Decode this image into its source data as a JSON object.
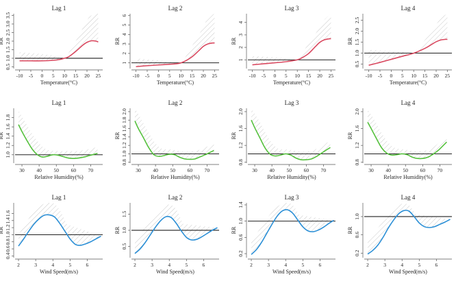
{
  "chart_data": [
    {
      "type": "line",
      "row": "temperature",
      "title": "Lag 1",
      "xlabel": "Temperature(°C)",
      "ylabel": "RR",
      "xlim": [
        -12,
        27
      ],
      "ylim": [
        0.4,
        3.6
      ],
      "xticks": [
        -10,
        -5,
        0,
        5,
        10,
        15,
        20,
        25
      ],
      "yticks": [
        0.5,
        1,
        1.5,
        2,
        2.5,
        3,
        3.5
      ],
      "ytick_labels": [
        "0.5",
        "1.0",
        "1.5",
        "2.0",
        "2.5",
        "3.0",
        "3.5"
      ],
      "reference_line": 1,
      "color": "#d9485f",
      "series": [
        {
          "name": "RR",
          "x": [
            -10,
            -5,
            0,
            5,
            8,
            10,
            12,
            15,
            18,
            20,
            22,
            24,
            25
          ],
          "y": [
            0.85,
            0.85,
            0.85,
            0.88,
            0.93,
            1.0,
            1.1,
            1.4,
            1.75,
            1.93,
            2.02,
            2.0,
            1.95
          ]
        }
      ],
      "ci_upper": {
        "x": [
          -10,
          -5,
          0,
          5,
          10,
          15,
          20,
          22,
          25
        ],
        "y": [
          1.35,
          1.3,
          1.25,
          1.15,
          1.05,
          2.0,
          3.2,
          3.5,
          3.6
        ]
      }
    },
    {
      "type": "line",
      "row": "temperature",
      "title": "Lag 2",
      "xlabel": "Temperature(°C)",
      "ylabel": "RR",
      "xlim": [
        -12,
        27
      ],
      "ylim": [
        0.4,
        6.2
      ],
      "xticks": [
        -10,
        -5,
        0,
        5,
        10,
        15,
        20,
        25
      ],
      "yticks": [
        1,
        2,
        3,
        4,
        5,
        6
      ],
      "ytick_labels": [
        "1",
        "2",
        "3",
        "4",
        "5",
        "6"
      ],
      "reference_line": 1,
      "color": "#d9485f",
      "series": [
        {
          "name": "RR",
          "x": [
            -10,
            -5,
            0,
            5,
            8,
            10,
            12,
            15,
            18,
            20,
            22,
            24,
            25
          ],
          "y": [
            0.6,
            0.7,
            0.78,
            0.85,
            0.9,
            1.0,
            1.2,
            1.65,
            2.3,
            2.75,
            3.0,
            3.1,
            3.1
          ]
        }
      ],
      "ci_upper": {
        "x": [
          -10,
          -5,
          0,
          5,
          10,
          15,
          20,
          22,
          25
        ],
        "y": [
          1.5,
          1.35,
          1.25,
          1.15,
          1.05,
          2.8,
          4.8,
          5.8,
          6.2
        ]
      }
    },
    {
      "type": "line",
      "row": "temperature",
      "title": "Lag 3",
      "xlabel": "Temperature(°C)",
      "ylabel": "RR",
      "xlim": [
        -12,
        27
      ],
      "ylim": [
        0.3,
        4.7
      ],
      "xticks": [
        -10,
        -5,
        0,
        5,
        10,
        15,
        20,
        25
      ],
      "yticks": [
        1,
        2,
        3,
        4
      ],
      "ytick_labels": [
        "1",
        "2",
        "3",
        "4"
      ],
      "reference_line": 1,
      "color": "#d9485f",
      "series": [
        {
          "name": "RR",
          "x": [
            -10,
            -5,
            0,
            5,
            8,
            10,
            12,
            15,
            18,
            20,
            22,
            24,
            25
          ],
          "y": [
            0.6,
            0.68,
            0.76,
            0.85,
            0.93,
            1.0,
            1.15,
            1.5,
            2.05,
            2.4,
            2.6,
            2.68,
            2.7
          ]
        }
      ],
      "ci_upper": {
        "x": [
          -10,
          -5,
          0,
          5,
          10,
          15,
          20,
          22,
          25
        ],
        "y": [
          1.3,
          1.25,
          1.2,
          1.12,
          1.05,
          2.3,
          3.6,
          4.2,
          4.7
        ]
      }
    },
    {
      "type": "line",
      "row": "temperature",
      "title": "Lag 4",
      "xlabel": "Temperature(°C)",
      "ylabel": "RR",
      "xlim": [
        -12,
        27
      ],
      "ylim": [
        0.3,
        2.8
      ],
      "xticks": [
        -10,
        -5,
        0,
        5,
        10,
        15,
        20,
        25
      ],
      "yticks": [
        0.5,
        1,
        1.5,
        2,
        2.5
      ],
      "ytick_labels": [
        "0.5",
        "1.0",
        "1.5",
        "2.0",
        "2.5"
      ],
      "reference_line": 1,
      "color": "#d9485f",
      "series": [
        {
          "name": "RR",
          "x": [
            -10,
            -5,
            0,
            5,
            10,
            15,
            18,
            20,
            22,
            24,
            25
          ],
          "y": [
            0.45,
            0.58,
            0.72,
            0.86,
            1.0,
            1.22,
            1.4,
            1.52,
            1.6,
            1.63,
            1.63
          ]
        }
      ],
      "ci_upper": {
        "x": [
          -10,
          -5,
          0,
          5,
          10,
          15,
          20,
          22,
          25
        ],
        "y": [
          1.15,
          1.12,
          1.1,
          1.06,
          1.03,
          1.6,
          2.3,
          2.6,
          2.8
        ]
      }
    },
    {
      "type": "line",
      "row": "humidity",
      "title": "Lag 1",
      "xlabel": "Relative Humidity(%)",
      "ylabel": "RR",
      "xlim": [
        26,
        77
      ],
      "ylim": [
        0.82,
        2.0
      ],
      "xticks": [
        30,
        40,
        50,
        60,
        70
      ],
      "yticks": [
        1.0,
        1.2,
        1.4,
        1.6,
        1.8
      ],
      "ytick_labels": [
        "1.0",
        "1.2",
        "1.4",
        "1.6",
        "1.8"
      ],
      "reference_line": 1,
      "color": "#55c13d",
      "series": [
        {
          "name": "RR",
          "x": [
            28,
            30,
            33,
            36,
            39,
            42,
            45,
            48,
            51,
            54,
            57,
            60,
            63,
            66,
            69,
            72,
            74
          ],
          "y": [
            1.65,
            1.5,
            1.3,
            1.12,
            1.0,
            0.95,
            0.97,
            1.0,
            0.99,
            0.96,
            0.93,
            0.92,
            0.93,
            0.95,
            0.98,
            1.01,
            1.03
          ]
        }
      ],
      "ci_upper": {
        "x": [
          28,
          32,
          36,
          40,
          44,
          50,
          56,
          62,
          66,
          70,
          74
        ],
        "y": [
          1.95,
          1.7,
          1.45,
          1.25,
          1.12,
          1.08,
          1.08,
          1.08,
          1.1,
          1.13,
          1.17
        ]
      }
    },
    {
      "type": "line",
      "row": "humidity",
      "title": "Lag 2",
      "xlabel": "Relative Humidity(%)",
      "ylabel": "RR",
      "xlim": [
        26,
        77
      ],
      "ylim": [
        0.78,
        2.08
      ],
      "xticks": [
        30,
        40,
        50,
        60,
        70
      ],
      "yticks": [
        0.8,
        1.0,
        1.2,
        1.4,
        1.6,
        1.8,
        2.0
      ],
      "ytick_labels": [
        "0.8",
        "1.0",
        "1.2",
        "1.4",
        "1.6",
        "1.8",
        "2.0"
      ],
      "reference_line": 1,
      "color": "#55c13d",
      "series": [
        {
          "name": "RR",
          "x": [
            28,
            30,
            33,
            36,
            39,
            42,
            45,
            48,
            51,
            54,
            57,
            60,
            63,
            66,
            69,
            72,
            74
          ],
          "y": [
            1.78,
            1.6,
            1.38,
            1.15,
            0.98,
            0.94,
            0.96,
            0.99,
            0.98,
            0.92,
            0.88,
            0.87,
            0.88,
            0.93,
            0.98,
            1.04,
            1.08
          ]
        }
      ],
      "ci_upper": {
        "x": [
          28,
          32,
          36,
          40,
          44,
          50,
          56,
          62,
          66,
          70,
          74
        ],
        "y": [
          2.08,
          1.8,
          1.5,
          1.25,
          1.12,
          1.1,
          1.05,
          1.06,
          1.1,
          1.17,
          1.22
        ]
      }
    },
    {
      "type": "line",
      "row": "humidity",
      "title": "Lag 3",
      "xlabel": "Relative Humidity(%)",
      "ylabel": "RR",
      "xlim": [
        26,
        77
      ],
      "ylim": [
        0.78,
        2.08
      ],
      "xticks": [
        30,
        40,
        50,
        60,
        70
      ],
      "yticks": [
        0.8,
        1.2,
        1.6,
        2.0
      ],
      "ytick_labels": [
        "0.8",
        "1.2",
        "1.6",
        "2.0"
      ],
      "reference_line": 1,
      "color": "#55c13d",
      "series": [
        {
          "name": "RR",
          "x": [
            28,
            30,
            33,
            36,
            39,
            42,
            45,
            48,
            51,
            54,
            57,
            60,
            63,
            66,
            69,
            72,
            74
          ],
          "y": [
            1.8,
            1.62,
            1.38,
            1.14,
            0.99,
            0.95,
            0.97,
            1.0,
            0.97,
            0.9,
            0.86,
            0.86,
            0.88,
            0.94,
            1.02,
            1.1,
            1.15
          ]
        }
      ],
      "ci_upper": {
        "x": [
          28,
          32,
          36,
          40,
          44,
          50,
          56,
          62,
          66,
          70,
          74
        ],
        "y": [
          2.08,
          1.82,
          1.52,
          1.26,
          1.12,
          1.1,
          1.05,
          1.06,
          1.12,
          1.22,
          1.3
        ]
      }
    },
    {
      "type": "line",
      "row": "humidity",
      "title": "Lag 4",
      "xlabel": "Relative Humidity(%)",
      "ylabel": "RR",
      "xlim": [
        26,
        77
      ],
      "ylim": [
        0.78,
        2.08
      ],
      "xticks": [
        30,
        40,
        50,
        60,
        70
      ],
      "yticks": [
        0.8,
        1.2,
        1.6,
        2.0
      ],
      "ytick_labels": [
        "0.8",
        "1.2",
        "1.6",
        "2.0"
      ],
      "reference_line": 1,
      "color": "#55c13d",
      "series": [
        {
          "name": "RR",
          "x": [
            28,
            30,
            33,
            36,
            39,
            42,
            45,
            48,
            51,
            54,
            57,
            60,
            63,
            66,
            69,
            72,
            74
          ],
          "y": [
            1.75,
            1.6,
            1.37,
            1.15,
            1.02,
            0.97,
            0.98,
            1.0,
            0.98,
            0.92,
            0.89,
            0.89,
            0.92,
            0.99,
            1.08,
            1.2,
            1.28
          ]
        }
      ],
      "ci_upper": {
        "x": [
          28,
          32,
          36,
          40,
          44,
          50,
          56,
          62,
          66,
          70,
          74
        ],
        "y": [
          2.05,
          1.8,
          1.5,
          1.27,
          1.14,
          1.1,
          1.06,
          1.08,
          1.15,
          1.28,
          1.4
        ]
      }
    },
    {
      "type": "line",
      "row": "wind",
      "title": "Lag 1",
      "xlabel": "Wind Speed(m/s)",
      "ylabel": "RR",
      "xlim": [
        1.8,
        6.9
      ],
      "ylim": [
        0.35,
        1.9
      ],
      "xticks": [
        2,
        3,
        4,
        5,
        6
      ],
      "yticks": [
        0.4,
        0.6,
        0.8,
        1.0,
        1.2,
        1.4,
        1.6
      ],
      "ytick_labels": [
        "0.4",
        "0.6",
        "0.8",
        "1.0",
        "1.2",
        "1.4",
        "1.6"
      ],
      "reference_line": 1,
      "color": "#2b8fd6",
      "series": [
        {
          "name": "RR",
          "x": [
            2.0,
            2.3,
            2.6,
            2.9,
            3.2,
            3.5,
            3.8,
            4.1,
            4.4,
            4.7,
            5.0,
            5.3,
            5.6,
            5.9,
            6.2,
            6.5,
            6.8
          ],
          "y": [
            0.68,
            0.88,
            1.1,
            1.3,
            1.45,
            1.55,
            1.56,
            1.5,
            1.32,
            1.1,
            0.88,
            0.73,
            0.7,
            0.74,
            0.8,
            0.88,
            0.96
          ]
        }
      ],
      "ci_upper": {
        "x": [
          2.0,
          2.4,
          2.8,
          3.2,
          3.6,
          4.0,
          4.4,
          4.8
        ],
        "y": [
          1.0,
          1.3,
          1.6,
          1.78,
          1.9,
          1.9,
          1.7,
          1.3
        ]
      }
    },
    {
      "type": "line",
      "row": "wind",
      "title": "Lag 2",
      "xlabel": "Wind Speed(m/s)",
      "ylabel": "RR",
      "xlim": [
        1.8,
        6.9
      ],
      "ylim": [
        0.15,
        1.85
      ],
      "xticks": [
        2,
        3,
        4,
        5,
        6
      ],
      "yticks": [
        0.5,
        1.0,
        1.5
      ],
      "ytick_labels": [
        "0.5",
        "1.0",
        "1.5"
      ],
      "reference_line": 1,
      "color": "#2b8fd6",
      "series": [
        {
          "name": "RR",
          "x": [
            2.0,
            2.3,
            2.6,
            2.9,
            3.2,
            3.5,
            3.8,
            4.1,
            4.4,
            4.7,
            5.0,
            5.3,
            5.6,
            5.9,
            6.2,
            6.5,
            6.8
          ],
          "y": [
            0.28,
            0.42,
            0.62,
            0.86,
            1.1,
            1.3,
            1.42,
            1.4,
            1.22,
            0.98,
            0.78,
            0.7,
            0.72,
            0.8,
            0.9,
            1.0,
            1.08
          ]
        }
      ],
      "ci_upper": {
        "x": [
          2.0,
          2.4,
          2.8,
          3.2,
          3.6,
          4.0,
          4.4,
          4.8
        ],
        "y": [
          0.65,
          0.95,
          1.25,
          1.5,
          1.7,
          1.8,
          1.65,
          1.2
        ]
      }
    },
    {
      "type": "line",
      "row": "wind",
      "title": "Lag 3",
      "xlabel": "Wind Speed(m/s)",
      "ylabel": "RR",
      "xlim": [
        1.8,
        6.9
      ],
      "ylim": [
        0.1,
        1.45
      ],
      "xticks": [
        2,
        3,
        4,
        5,
        6
      ],
      "yticks": [
        0.2,
        0.6,
        1.0,
        1.4
      ],
      "ytick_labels": [
        "0.2",
        "0.6",
        "1.0",
        "1.4"
      ],
      "reference_line": 1,
      "color": "#2b8fd6",
      "series": [
        {
          "name": "RR",
          "x": [
            2.0,
            2.3,
            2.6,
            2.9,
            3.2,
            3.5,
            3.8,
            4.1,
            4.4,
            4.7,
            5.0,
            5.3,
            5.6,
            5.9,
            6.2,
            6.5,
            6.8
          ],
          "y": [
            0.18,
            0.3,
            0.48,
            0.7,
            0.92,
            1.12,
            1.25,
            1.28,
            1.2,
            1.03,
            0.86,
            0.76,
            0.74,
            0.78,
            0.85,
            0.94,
            1.02
          ]
        }
      ],
      "ci_upper": {
        "x": [
          2.0,
          2.4,
          2.8,
          3.2,
          3.6,
          4.0,
          4.4,
          4.8
        ],
        "y": [
          0.5,
          0.75,
          1.0,
          1.22,
          1.38,
          1.45,
          1.4,
          1.15
        ]
      }
    },
    {
      "type": "line",
      "row": "wind",
      "title": "Lag 4",
      "xlabel": "Wind Speed(m/s)",
      "ylabel": "RR",
      "xlim": [
        1.8,
        6.9
      ],
      "ylim": [
        0.1,
        1.3
      ],
      "xticks": [
        2,
        3,
        4,
        5,
        6
      ],
      "yticks": [
        0.2,
        0.6,
        1.0
      ],
      "ytick_labels": [
        "0.2",
        "0.6",
        "1.0"
      ],
      "reference_line": 1,
      "color": "#2b8fd6",
      "series": [
        {
          "name": "RR",
          "x": [
            2.0,
            2.3,
            2.6,
            2.9,
            3.2,
            3.5,
            3.8,
            4.1,
            4.4,
            4.7,
            5.0,
            5.3,
            5.6,
            5.9,
            6.2,
            6.5,
            6.8
          ],
          "y": [
            0.18,
            0.26,
            0.38,
            0.55,
            0.75,
            0.92,
            1.06,
            1.13,
            1.12,
            1.0,
            0.86,
            0.78,
            0.76,
            0.78,
            0.83,
            0.88,
            0.94
          ]
        }
      ],
      "ci_upper": {
        "x": [
          2.0,
          2.4,
          2.8,
          3.2,
          3.6,
          4.0,
          4.4,
          4.8
        ],
        "y": [
          0.45,
          0.65,
          0.85,
          1.05,
          1.2,
          1.28,
          1.25,
          1.05
        ]
      }
    }
  ]
}
